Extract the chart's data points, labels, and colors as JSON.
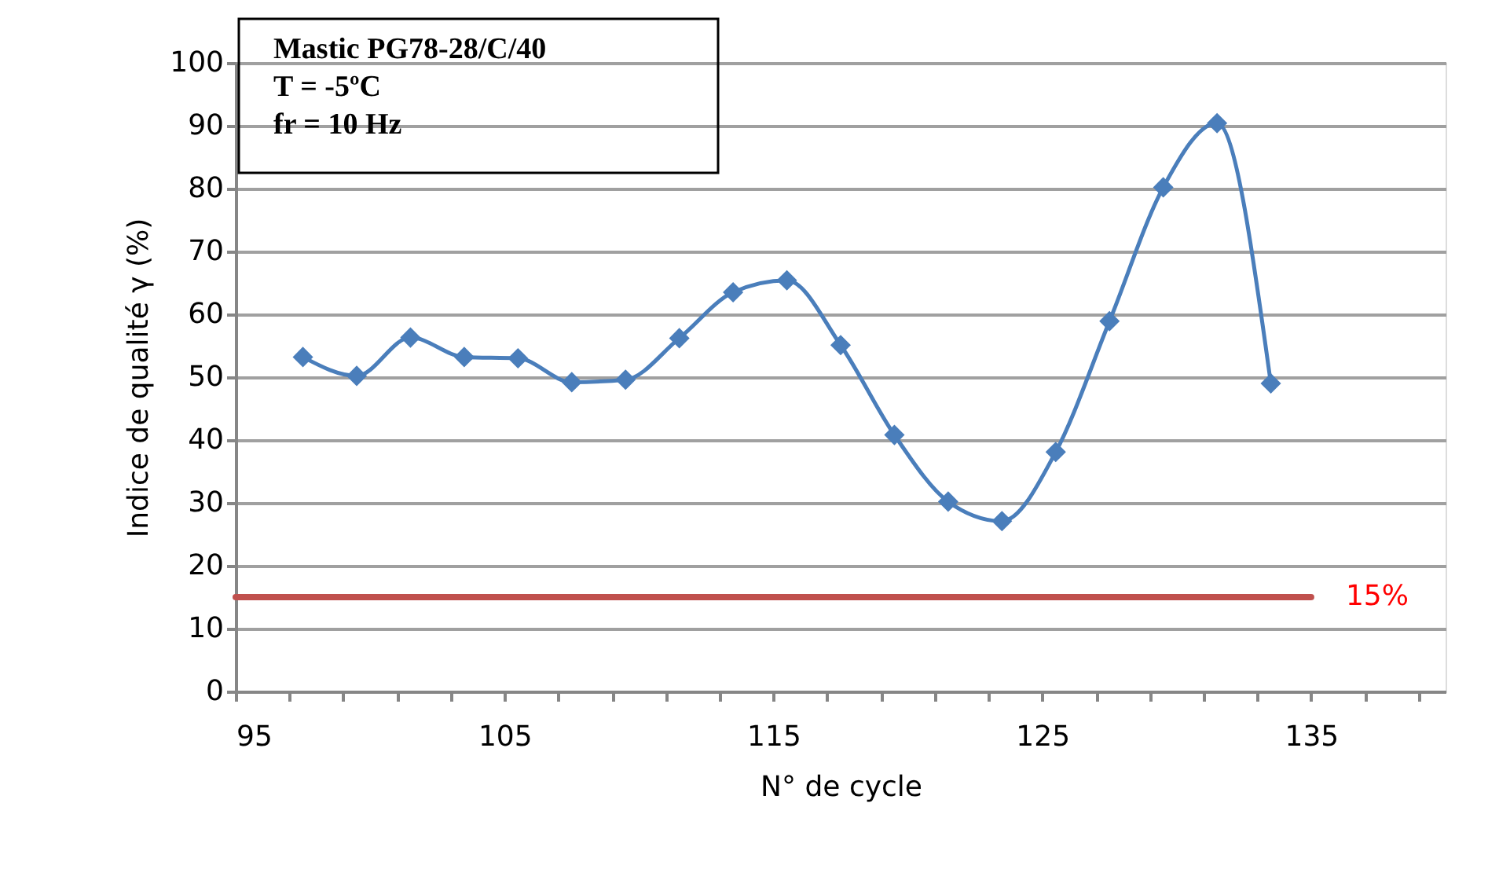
{
  "chart_data": {
    "type": "line",
    "xlabel": "N° de cycle",
    "ylabel": "Indice de qualité γ (%)",
    "annotations": [
      "Mastic PG78-28/C/40",
      " T = -5ºC",
      " fr = 10 Hz"
    ],
    "x": [
      97.5,
      99.5,
      101.5,
      103.5,
      105.5,
      107.5,
      109.5,
      111.5,
      113.5,
      115.5,
      117.5,
      119.5,
      121.5,
      123.5,
      125.5,
      127.5,
      129.5,
      131.5,
      133.5
    ],
    "series": [
      {
        "color": "#4a7ebb",
        "values": [
          53.2,
          50.2,
          56.3,
          53.2,
          53.0,
          49.2,
          49.6,
          56.2,
          63.5,
          65.4,
          55.1,
          40.8,
          30.2,
          27.1,
          38.1,
          58.9,
          80.2,
          90.4,
          49.0
        ]
      }
    ],
    "marker": "diamond",
    "line_style": "solid",
    "xlim": [
      95,
      140
    ],
    "xticks": [
      95,
      {
        "value": 97,
        "label": null
      },
      {
        "value": 99,
        "label": null
      },
      {
        "value": 101,
        "label": null
      },
      {
        "value": 103,
        "label": null
      },
      105,
      {
        "value": 107,
        "label": null
      },
      {
        "value": 109,
        "label": null
      },
      {
        "value": 111,
        "label": null
      },
      {
        "value": 113,
        "label": null
      },
      115,
      {
        "value": 117,
        "label": null
      },
      {
        "value": 119,
        "label": null
      },
      {
        "value": 121,
        "label": null
      },
      {
        "value": 123,
        "label": null
      },
      125,
      {
        "value": 127,
        "label": null
      },
      {
        "value": 129,
        "label": null
      },
      {
        "value": 131,
        "label": null
      },
      {
        "value": 133,
        "label": null
      },
      135,
      {
        "value": 137,
        "label": null
      },
      {
        "value": 139,
        "label": null
      }
    ],
    "ylim": [
      0,
      100
    ],
    "yticks": [
      0,
      10,
      20,
      30,
      40,
      50,
      60,
      70,
      80,
      90,
      100
    ],
    "ref_lines": [
      {
        "axis": "y",
        "value": 15,
        "label": "15%",
        "color": "#c0504d"
      }
    ],
    "grid": "y"
  }
}
